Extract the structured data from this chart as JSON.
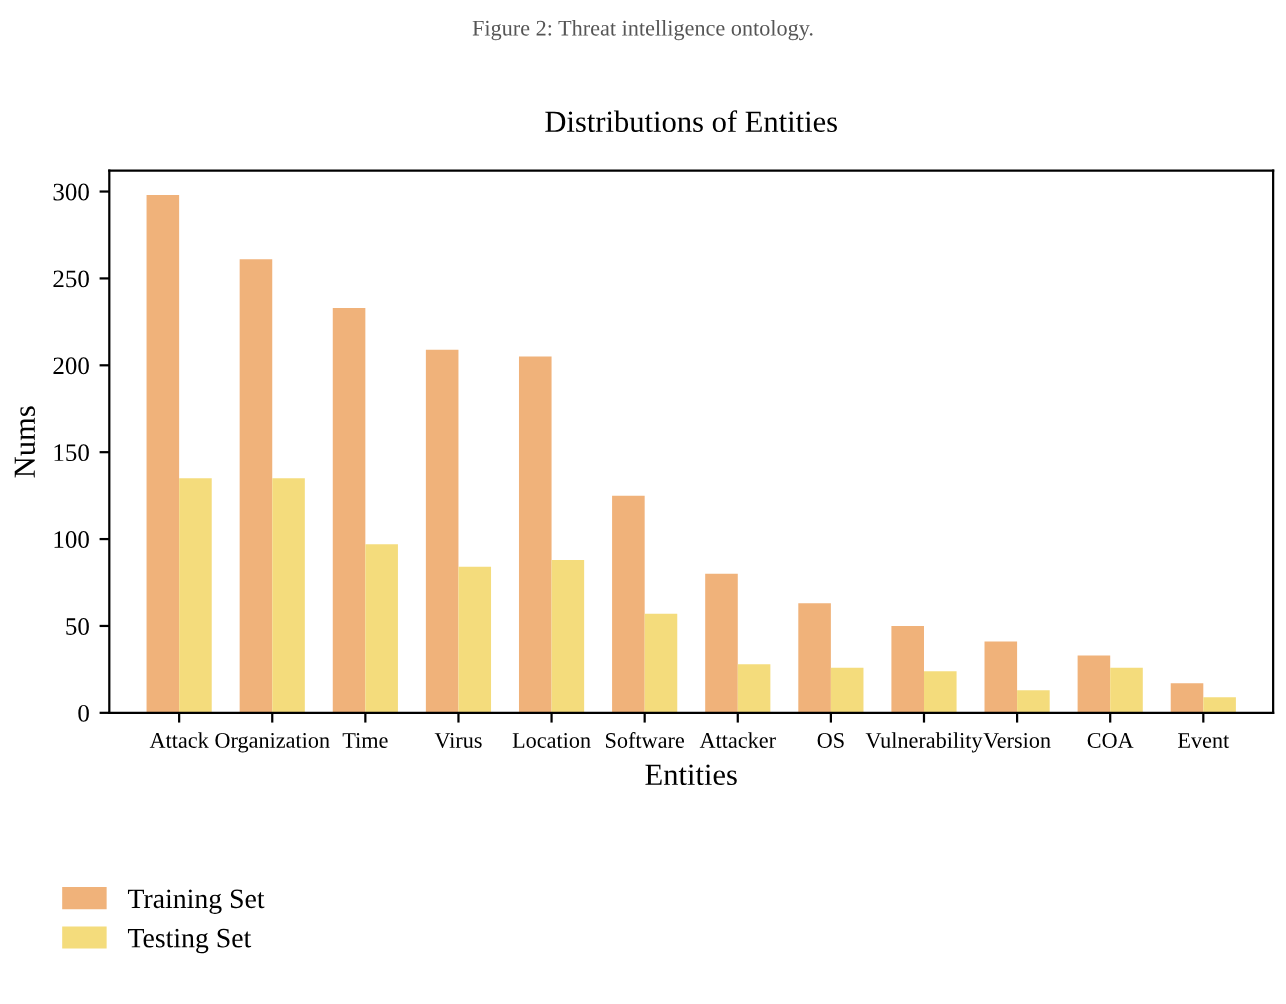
{
  "chart_data": {
    "type": "bar",
    "title": "Distributions of Entities",
    "xlabel": "Entities",
    "ylabel": "Nums",
    "annotations": [
      "Figure 2: Threat intelligence ontology."
    ],
    "categories": [
      "Attack",
      "Organization",
      "Time",
      "Virus",
      "Location",
      "Software",
      "Attacker",
      "OS",
      "Vulnerability",
      "Version",
      "COA",
      "Event"
    ],
    "series": [
      {
        "name": "Training Set",
        "color": "#f0b27a",
        "values": [
          298,
          261,
          233,
          209,
          205,
          125,
          80,
          63,
          50,
          41,
          33,
          17
        ]
      },
      {
        "name": "Testing Set",
        "color": "#f4dc7c",
        "values": [
          135,
          135,
          97,
          84,
          88,
          57,
          28,
          26,
          24,
          13,
          26,
          9
        ]
      }
    ],
    "ylim": [
      0,
      312
    ],
    "yticks": [
      0,
      50,
      100,
      150,
      200,
      250,
      300
    ],
    "grid": false,
    "legend": "bottom left"
  }
}
